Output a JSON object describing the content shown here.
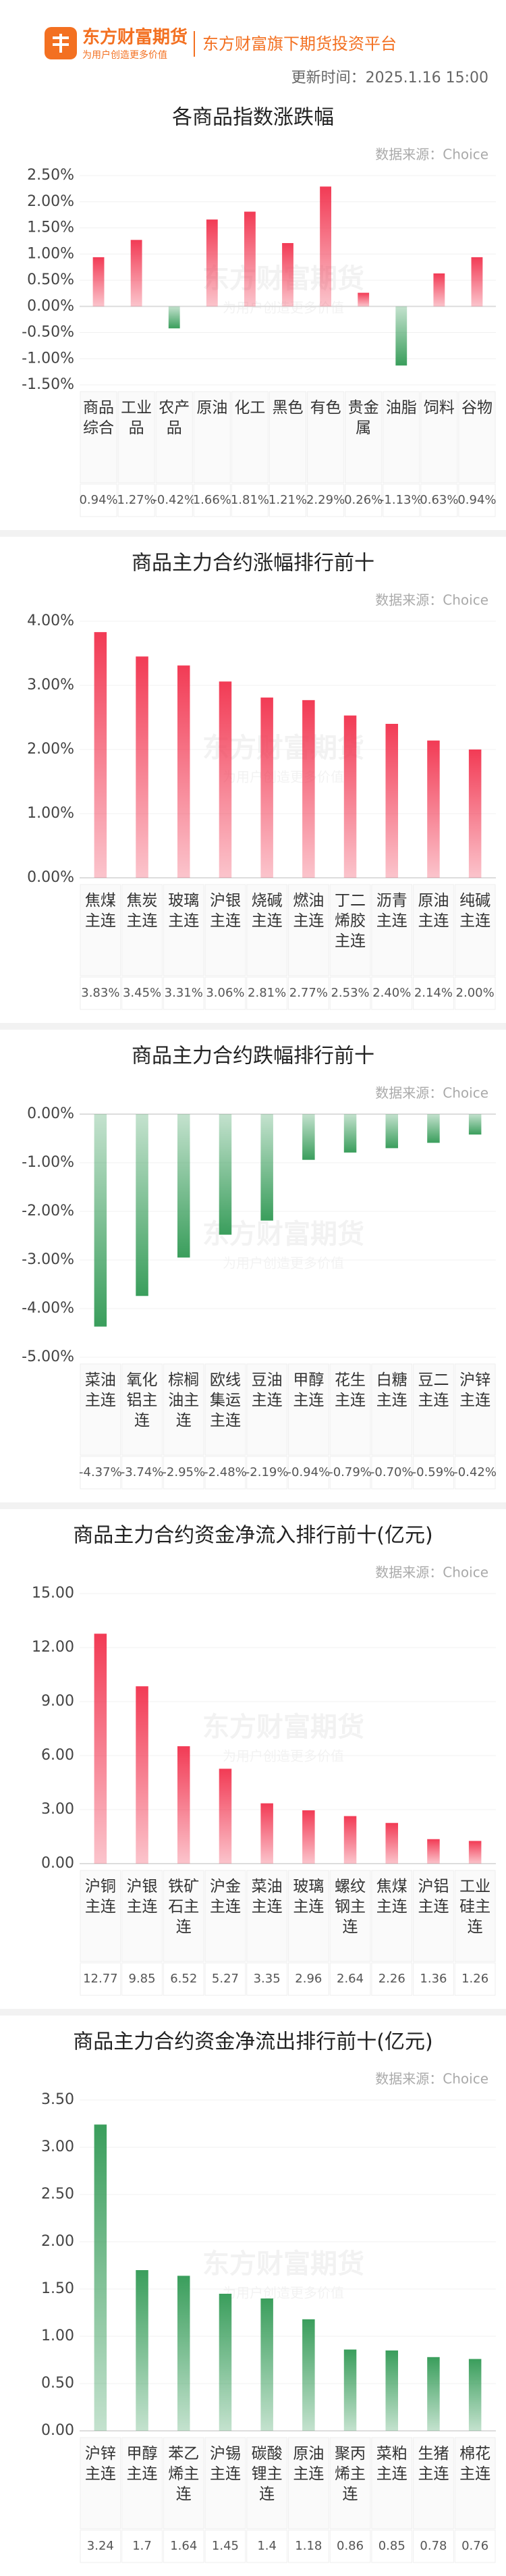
{
  "header": {
    "logo_name": "东方财富期货",
    "logo_slogan": "为用户创造更多价值",
    "platform": "东方财富旗下期货投资平台",
    "update_time": "更新时间：2025.1.16 15:00"
  },
  "chart_data": [
    {
      "type": "bar",
      "title": "各商品指数涨跌幅",
      "source": "数据来源：Choice",
      "categories": [
        "商品综合",
        "工业品",
        "农产品",
        "原油",
        "化工",
        "黑色",
        "有色",
        "贵金属",
        "油脂",
        "饲料",
        "谷物"
      ],
      "values": [
        0.94,
        1.27,
        -0.42,
        1.66,
        1.81,
        1.21,
        2.29,
        0.26,
        -1.13,
        0.63,
        0.94
      ],
      "value_labels": [
        "0.94%",
        "1.27%",
        "-0.42%",
        "1.66%",
        "1.81%",
        "1.21%",
        "2.29%",
        "0.26%",
        "-1.13%",
        "0.63%",
        "0.94%"
      ],
      "ylim": [
        -1.5,
        2.5
      ],
      "yticks": [
        {
          "value": 2.5,
          "label": "2.50%"
        },
        {
          "value": 2,
          "label": "2.00%"
        },
        {
          "value": 1.5,
          "label": "1.50%"
        },
        {
          "value": 1,
          "label": "1.00%"
        },
        {
          "value": 0.5,
          "label": "0.50%"
        },
        {
          "value": 0,
          "label": "0.00%"
        },
        {
          "value": -0.5,
          "label": "-0.50%"
        },
        {
          "value": -1,
          "label": "-1.00%"
        },
        {
          "value": -1.5,
          "label": "-1.50%"
        }
      ],
      "color": "#f23b55",
      "negative_color": "#3a9e5c",
      "grid": true
    },
    {
      "type": "bar",
      "title": "商品主力合约涨幅排行前十",
      "source": "数据来源：Choice",
      "categories": [
        "焦煤主连",
        "焦炭主连",
        "玻璃主连",
        "沪银主连",
        "烧碱主连",
        "燃油主连",
        "丁二烯胶主连",
        "沥青主连",
        "原油主连",
        "纯碱主连"
      ],
      "values": [
        3.83,
        3.45,
        3.31,
        3.06,
        2.81,
        2.77,
        2.53,
        2.4,
        2.14,
        2.0
      ],
      "value_labels": [
        "3.83%",
        "3.45%",
        "3.31%",
        "3.06%",
        "2.81%",
        "2.77%",
        "2.53%",
        "2.40%",
        "2.14%",
        "2.00%"
      ],
      "ylim": [
        0,
        4
      ],
      "yticks": [
        {
          "value": 4,
          "label": "4.00%"
        },
        {
          "value": 3,
          "label": "3.00%"
        },
        {
          "value": 2,
          "label": "2.00%"
        },
        {
          "value": 1,
          "label": "1.00%"
        },
        {
          "value": 0,
          "label": "0.00%"
        }
      ],
      "color": "#f23b55",
      "negative_color": "#3a9e5c",
      "grid": true
    },
    {
      "type": "bar",
      "title": "商品主力合约跌幅排行前十",
      "source": "数据来源：Choice",
      "categories": [
        "菜油主连",
        "氧化铝主连",
        "棕榈油主连",
        "欧线集运主连",
        "豆油主连",
        "甲醇主连",
        "花生主连",
        "白糖主连",
        "豆二主连",
        "沪锌主连"
      ],
      "values": [
        -4.37,
        -3.74,
        -2.95,
        -2.48,
        -2.19,
        -0.94,
        -0.79,
        -0.7,
        -0.59,
        -0.42
      ],
      "value_labels": [
        "-4.37%",
        "-3.74%",
        "-2.95%",
        "-2.48%",
        "-2.19%",
        "-0.94%",
        "-0.79%",
        "-0.70%",
        "-0.59%",
        "-0.42%"
      ],
      "ylim": [
        -5,
        0
      ],
      "yticks": [
        {
          "value": 0,
          "label": "0.00%"
        },
        {
          "value": -1,
          "label": "-1.00%"
        },
        {
          "value": -2,
          "label": "-2.00%"
        },
        {
          "value": -3,
          "label": "-3.00%"
        },
        {
          "value": -4,
          "label": "-4.00%"
        },
        {
          "value": -5,
          "label": "-5.00%"
        }
      ],
      "color": "#f23b55",
      "negative_color": "#3a9e5c",
      "grid": true
    },
    {
      "type": "bar",
      "title": "商品主力合约资金净流入排行前十(亿元)",
      "source": "数据来源：Choice",
      "categories": [
        "沪铜主连",
        "沪银主连",
        "铁矿石主连",
        "沪金主连",
        "菜油主连",
        "玻璃主连",
        "螺纹钢主连",
        "焦煤主连",
        "沪铝主连",
        "工业硅主连"
      ],
      "values": [
        12.77,
        9.85,
        6.52,
        5.27,
        3.35,
        2.96,
        2.64,
        2.26,
        1.36,
        1.26
      ],
      "ylim": [
        0,
        15
      ],
      "yticks": [
        {
          "value": 15,
          "label": "15.00"
        },
        {
          "value": 12,
          "label": "12.00"
        },
        {
          "value": 9,
          "label": "9.00"
        },
        {
          "value": 6,
          "label": "6.00"
        },
        {
          "value": 3,
          "label": "3.00"
        },
        {
          "value": 0,
          "label": "0.00"
        }
      ],
      "color": "#f23b55",
      "negative_color": "#3a9e5c",
      "grid": true
    },
    {
      "type": "bar",
      "title": "商品主力合约资金净流出排行前十(亿元)",
      "source": "数据来源：Choice",
      "categories": [
        "沪锌主连",
        "甲醇主连",
        "苯乙烯主连",
        "沪锡主连",
        "碳酸锂主连",
        "原油主连",
        "聚丙烯主连",
        "菜粕主连",
        "生猪主连",
        "棉花主连"
      ],
      "values": [
        3.24,
        1.7,
        1.64,
        1.45,
        1.4,
        1.18,
        0.86,
        0.85,
        0.78,
        0.76
      ],
      "ylim": [
        0,
        3.5
      ],
      "yticks": [
        {
          "value": 3.5,
          "label": "3.50"
        },
        {
          "value": 3,
          "label": "3.00"
        },
        {
          "value": 2.5,
          "label": "2.50"
        },
        {
          "value": 2,
          "label": "2.00"
        },
        {
          "value": 1.5,
          "label": "1.50"
        },
        {
          "value": 1,
          "label": "1.00"
        },
        {
          "value": 0.5,
          "label": "0.50"
        },
        {
          "value": 0,
          "label": "0.00"
        }
      ],
      "color": "#3a9e5c",
      "negative_color": "#3a9e5c",
      "grid": true
    }
  ]
}
